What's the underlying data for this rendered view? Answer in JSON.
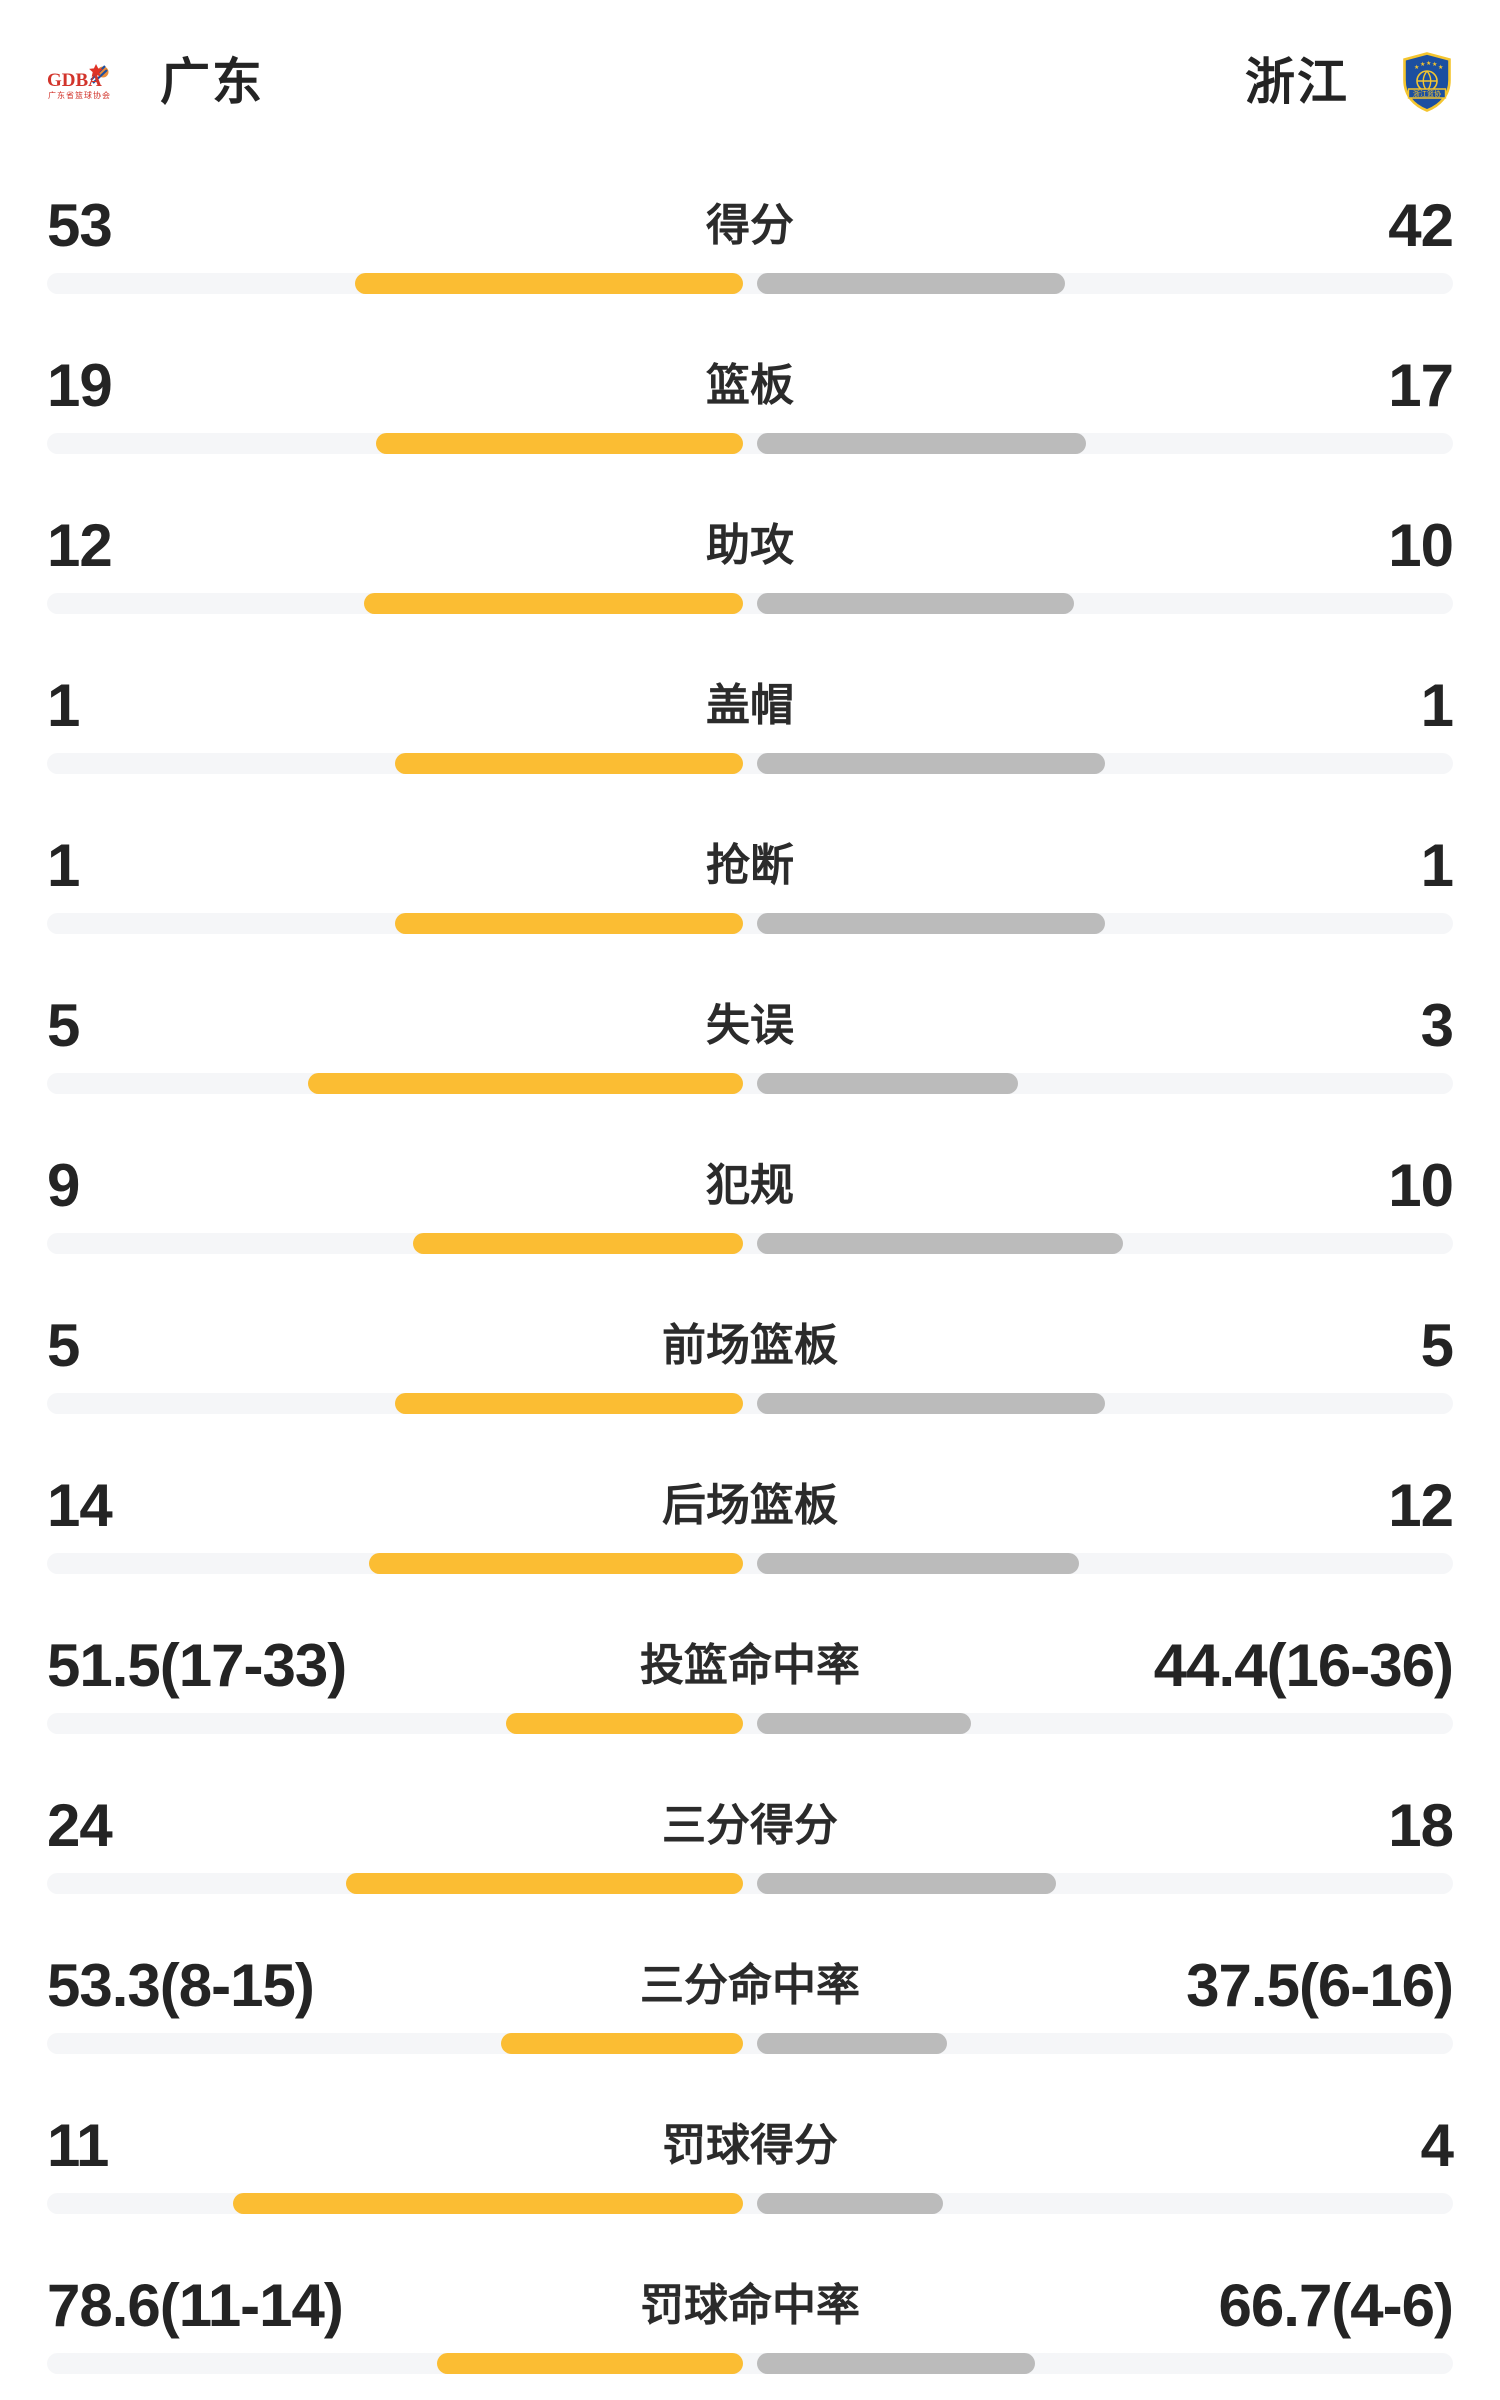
{
  "header": {
    "home": {
      "name": "广东",
      "logo": {
        "icon": "gdba-logo",
        "text": "GDBA",
        "subtext": "广东省篮球协会"
      }
    },
    "away": {
      "name": "浙江",
      "logo": {
        "icon": "zhejiang-basketball-shield",
        "banner_text": "浙江篮协"
      }
    }
  },
  "colors": {
    "home_bar": "#FBBD33",
    "away_bar": "#BBBBBB",
    "track": "#F5F6F8",
    "text": "#242424",
    "logo_red": "#D2342B",
    "logo_blue": "#1C4FA0",
    "logo_gold": "#F4C52F"
  },
  "chart_data": {
    "type": "bar",
    "legend": [
      "广东",
      "浙江"
    ],
    "stats": [
      {
        "label": "得分",
        "home": "53",
        "away": "42",
        "home_bar_pct": 55.8,
        "away_bar_pct": 44.2
      },
      {
        "label": "篮板",
        "home": "19",
        "away": "17",
        "home_bar_pct": 52.8,
        "away_bar_pct": 47.2
      },
      {
        "label": "助攻",
        "home": "12",
        "away": "10",
        "home_bar_pct": 54.5,
        "away_bar_pct": 45.5
      },
      {
        "label": "盖帽",
        "home": "1",
        "away": "1",
        "home_bar_pct": 50.0,
        "away_bar_pct": 50.0
      },
      {
        "label": "抢断",
        "home": "1",
        "away": "1",
        "home_bar_pct": 50.0,
        "away_bar_pct": 50.0
      },
      {
        "label": "失误",
        "home": "5",
        "away": "3",
        "home_bar_pct": 62.5,
        "away_bar_pct": 37.5
      },
      {
        "label": "犯规",
        "home": "9",
        "away": "10",
        "home_bar_pct": 47.4,
        "away_bar_pct": 52.6
      },
      {
        "label": "前场篮板",
        "home": "5",
        "away": "5",
        "home_bar_pct": 50.0,
        "away_bar_pct": 50.0
      },
      {
        "label": "后场篮板",
        "home": "14",
        "away": "12",
        "home_bar_pct": 53.8,
        "away_bar_pct": 46.2
      },
      {
        "label": "投篮命中率",
        "home": "51.5(17-33)",
        "away": "44.4(16-36)",
        "home_bar_pct": 34.0,
        "away_bar_pct": 30.7
      },
      {
        "label": "三分得分",
        "home": "24",
        "away": "18",
        "home_bar_pct": 57.1,
        "away_bar_pct": 42.9
      },
      {
        "label": "三分命中率",
        "home": "53.3(8-15)",
        "away": "37.5(6-16)",
        "home_bar_pct": 34.8,
        "away_bar_pct": 27.3
      },
      {
        "label": "罚球得分",
        "home": "11",
        "away": "4",
        "home_bar_pct": 73.3,
        "away_bar_pct": 26.7
      },
      {
        "label": "罚球命中率",
        "home": "78.6(11-14)",
        "away": "66.7(4-6)",
        "home_bar_pct": 44.0,
        "away_bar_pct": 40.0
      }
    ]
  }
}
